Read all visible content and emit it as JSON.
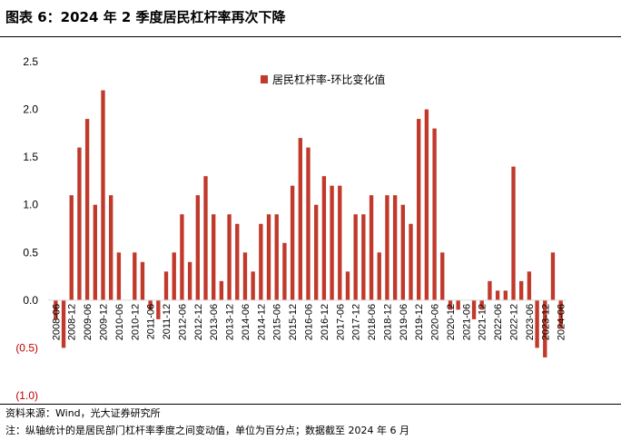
{
  "header": {
    "title": "图表 6：2024 年 2 季度居民杠杆率再次下降"
  },
  "footer": {
    "source": "资料来源：Wind，光大证券研究所",
    "note": "注：纵轴统计的是居民部门杠杆率季度之间变动值，单位为百分点；数据截至 2024 年 6 月"
  },
  "colors": {
    "bar": "#C0392B",
    "negative_label": "#C00000",
    "axis": "#D9D9D9",
    "text": "#000000"
  },
  "chart_data": {
    "type": "bar",
    "legend": "居民杠杆率-环比变化值",
    "legend_position": "top-center",
    "grid": false,
    "ylim": [
      -1.0,
      2.5
    ],
    "y_ticks": [
      {
        "value": 2.5,
        "label": "2.5"
      },
      {
        "value": 2.0,
        "label": "2.0"
      },
      {
        "value": 1.5,
        "label": "1.5"
      },
      {
        "value": 1.0,
        "label": "1.0"
      },
      {
        "value": 0.5,
        "label": "0.5"
      },
      {
        "value": 0.0,
        "label": "0.0"
      },
      {
        "value": -0.5,
        "label": "(0.5)"
      },
      {
        "value": -1.0,
        "label": "(1.0)"
      }
    ],
    "x_tick_labels": [
      "2008-06",
      "2008-12",
      "2009-06",
      "2009-12",
      "2010-06",
      "2010-12",
      "2011-06",
      "2011-12",
      "2012-06",
      "2012-12",
      "2013-06",
      "2013-12",
      "2014-06",
      "2014-12",
      "2015-06",
      "2015-12",
      "2016-06",
      "2016-12",
      "2017-06",
      "2017-12",
      "2018-06",
      "2018-12",
      "2019-06",
      "2019-12",
      "2020-06",
      "2020-12",
      "2021-06",
      "2021-12",
      "2022-06",
      "2022-12",
      "2023-06",
      "2023-12",
      "2024-06"
    ],
    "x": [
      "2008-06",
      "2008-09",
      "2008-12",
      "2009-03",
      "2009-06",
      "2009-09",
      "2009-12",
      "2010-03",
      "2010-06",
      "2010-09",
      "2010-12",
      "2011-03",
      "2011-06",
      "2011-09",
      "2011-12",
      "2012-03",
      "2012-06",
      "2012-09",
      "2012-12",
      "2013-03",
      "2013-06",
      "2013-09",
      "2013-12",
      "2014-03",
      "2014-06",
      "2014-09",
      "2014-12",
      "2015-03",
      "2015-06",
      "2015-09",
      "2015-12",
      "2016-03",
      "2016-06",
      "2016-09",
      "2016-12",
      "2017-03",
      "2017-06",
      "2017-09",
      "2017-12",
      "2018-03",
      "2018-06",
      "2018-09",
      "2018-12",
      "2019-03",
      "2019-06",
      "2019-09",
      "2019-12",
      "2020-03",
      "2020-06",
      "2020-09",
      "2020-12",
      "2021-03",
      "2021-06",
      "2021-09",
      "2021-12",
      "2022-03",
      "2022-06",
      "2022-09",
      "2022-12",
      "2023-03",
      "2023-06",
      "2023-09",
      "2023-12",
      "2024-03",
      "2024-06"
    ],
    "series": [
      {
        "name": "居民杠杆率-环比变化值",
        "values": [
          -0.2,
          -0.5,
          1.1,
          1.6,
          1.9,
          1.0,
          2.2,
          1.1,
          0.5,
          0.0,
          0.5,
          0.4,
          -0.1,
          -0.2,
          0.3,
          0.5,
          0.9,
          0.4,
          1.1,
          1.3,
          0.9,
          0.2,
          0.9,
          0.8,
          0.5,
          0.3,
          0.8,
          0.9,
          0.9,
          0.6,
          1.2,
          1.7,
          1.6,
          1.0,
          1.3,
          1.2,
          1.2,
          0.3,
          0.9,
          0.9,
          1.1,
          0.5,
          1.1,
          1.1,
          1.0,
          0.8,
          1.9,
          2.0,
          1.8,
          0.5,
          -0.1,
          -0.1,
          0.0,
          -0.2,
          -0.1,
          0.2,
          0.1,
          0.1,
          1.4,
          0.2,
          0.3,
          -0.5,
          -0.6,
          0.5,
          -0.3
        ]
      }
    ]
  }
}
